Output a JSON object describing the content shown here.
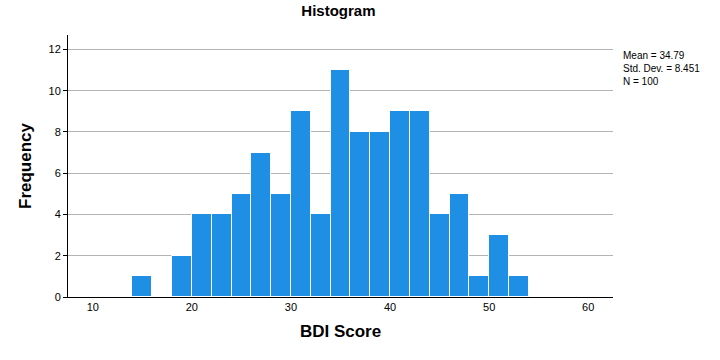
{
  "chart_data": {
    "type": "histogram",
    "title": "Histogram",
    "x_label": "BDI Score",
    "y_label": "Frequency",
    "bins": [
      14,
      16,
      18,
      20,
      22,
      24,
      26,
      28,
      30,
      32,
      34,
      36,
      38,
      40,
      42,
      44,
      46,
      48,
      50,
      52,
      54
    ],
    "values": [
      1,
      0,
      2,
      4,
      4,
      5,
      7,
      5,
      9,
      4,
      11,
      8,
      8,
      9,
      9,
      4,
      5,
      1,
      3,
      1
    ],
    "color": "#1f8fe6",
    "xlim": [
      7.5,
      62.5
    ],
    "xticks": [
      10,
      20,
      30,
      40,
      50,
      60
    ],
    "ylim": [
      0,
      12.7
    ],
    "yticks": [
      0,
      2,
      4,
      6,
      8,
      10,
      12
    ],
    "grid": true,
    "annotations": [
      "Mean = 34.79",
      "Std. Dev. = 8.451",
      "N = 100"
    ]
  }
}
